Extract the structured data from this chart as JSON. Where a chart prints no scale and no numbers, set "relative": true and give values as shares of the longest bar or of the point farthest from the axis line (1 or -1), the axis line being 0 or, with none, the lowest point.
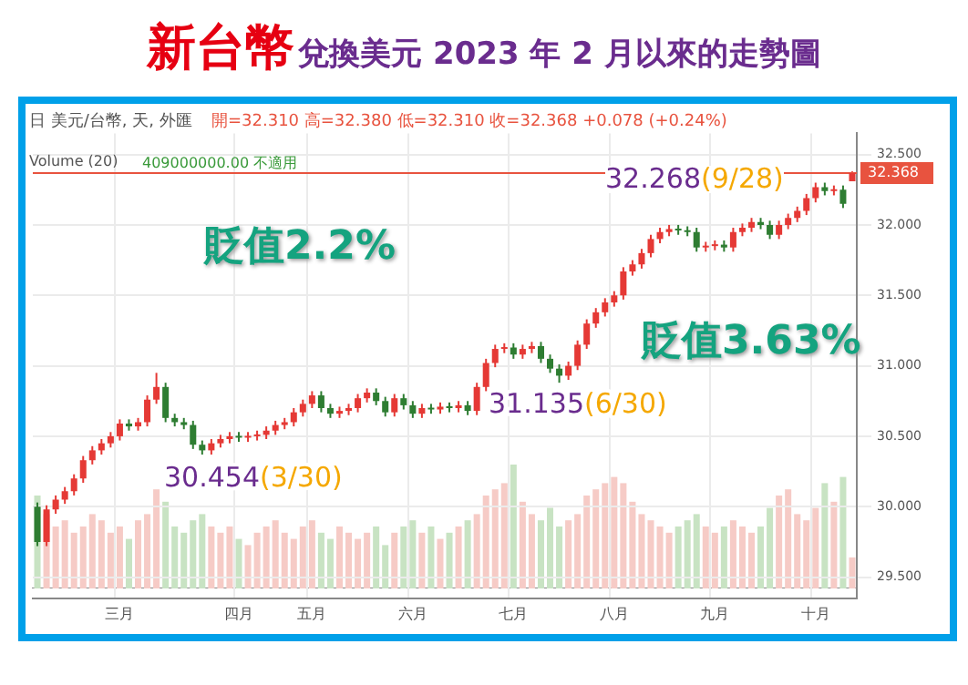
{
  "chart_data": [
    {
      "type": "candlestick",
      "title": "新台幣",
      "subtitle": "兌換美元 2023 年 2 月以來的走勢圖",
      "categories": [
        null,
        null,
        null,
        null,
        null,
        null,
        null,
        null,
        null,
        "三月",
        null,
        null,
        null,
        null,
        null,
        null,
        null,
        null,
        null,
        null,
        null,
        null,
        "四月",
        null,
        null,
        null,
        null,
        null,
        null,
        null,
        "五月",
        null,
        null,
        null,
        null,
        null,
        null,
        null,
        null,
        null,
        null,
        "六月",
        null,
        null,
        null,
        null,
        null,
        null,
        null,
        null,
        null,
        null,
        "七月",
        null,
        null,
        null,
        null,
        null,
        null,
        null,
        null,
        null,
        null,
        "八月",
        null,
        null,
        null,
        null,
        null,
        null,
        null,
        null,
        null,
        null,
        "九月",
        null,
        null,
        null,
        null,
        null,
        null,
        null,
        null,
        null,
        null,
        "十月",
        null,
        null,
        null,
        null
      ],
      "ohlc": [
        [
          30.0,
          30.03,
          29.72,
          29.75
        ],
        [
          29.75,
          30.01,
          29.72,
          29.98
        ],
        [
          29.98,
          30.08,
          29.95,
          30.05
        ],
        [
          30.05,
          30.14,
          30.02,
          30.11
        ],
        [
          30.11,
          30.23,
          30.08,
          30.2
        ],
        [
          30.2,
          30.36,
          30.17,
          30.33
        ],
        [
          30.33,
          30.43,
          30.3,
          30.4
        ],
        [
          30.4,
          30.48,
          30.37,
          30.45
        ],
        [
          30.45,
          30.53,
          30.42,
          30.5
        ],
        [
          30.5,
          30.62,
          30.47,
          30.59
        ],
        [
          30.59,
          30.62,
          30.54,
          30.57
        ],
        [
          30.57,
          30.63,
          30.54,
          30.6
        ],
        [
          30.6,
          30.79,
          30.57,
          30.76
        ],
        [
          30.76,
          30.95,
          30.73,
          30.85
        ],
        [
          30.85,
          30.88,
          30.6,
          30.63
        ],
        [
          30.63,
          30.66,
          30.57,
          30.6
        ],
        [
          30.6,
          30.63,
          30.55,
          30.58
        ],
        [
          30.58,
          30.61,
          30.41,
          30.44
        ],
        [
          30.44,
          30.47,
          30.37,
          30.4
        ],
        [
          30.4,
          30.48,
          30.37,
          30.45
        ],
        [
          30.45,
          30.51,
          30.42,
          30.48
        ],
        [
          30.48,
          30.53,
          30.45,
          30.5
        ],
        [
          30.5,
          30.53,
          30.46,
          30.49
        ],
        [
          30.49,
          30.53,
          30.46,
          30.5
        ],
        [
          30.5,
          30.54,
          30.47,
          30.51
        ],
        [
          30.51,
          30.57,
          30.48,
          30.54
        ],
        [
          30.54,
          30.61,
          30.51,
          30.58
        ],
        [
          30.58,
          30.63,
          30.55,
          30.6
        ],
        [
          30.6,
          30.7,
          30.57,
          30.67
        ],
        [
          30.67,
          30.76,
          30.64,
          30.73
        ],
        [
          30.73,
          30.82,
          30.7,
          30.79
        ],
        [
          30.79,
          30.82,
          30.67,
          30.7
        ],
        [
          30.7,
          30.73,
          30.63,
          30.66
        ],
        [
          30.66,
          30.71,
          30.63,
          30.68
        ],
        [
          30.68,
          30.73,
          30.65,
          30.7
        ],
        [
          30.7,
          30.8,
          30.67,
          30.77
        ],
        [
          30.77,
          30.84,
          30.74,
          30.81
        ],
        [
          30.81,
          30.84,
          30.72,
          30.75
        ],
        [
          30.75,
          30.78,
          30.64,
          30.67
        ],
        [
          30.67,
          30.8,
          30.64,
          30.77
        ],
        [
          30.77,
          30.8,
          30.69,
          30.72
        ],
        [
          30.72,
          30.75,
          30.63,
          30.66
        ],
        [
          30.66,
          30.73,
          30.63,
          30.7
        ],
        [
          30.7,
          30.73,
          30.66,
          30.69
        ],
        [
          30.69,
          30.74,
          30.66,
          30.71
        ],
        [
          30.71,
          30.74,
          30.67,
          30.7
        ],
        [
          30.7,
          30.75,
          30.67,
          30.72
        ],
        [
          30.72,
          30.75,
          30.65,
          30.68
        ],
        [
          30.68,
          30.88,
          30.65,
          30.85
        ],
        [
          30.85,
          31.05,
          30.82,
          31.02
        ],
        [
          31.02,
          31.15,
          30.99,
          31.12
        ],
        [
          31.12,
          31.16,
          31.09,
          31.13
        ],
        [
          31.13,
          31.16,
          31.05,
          31.08
        ],
        [
          31.08,
          31.15,
          31.05,
          31.12
        ],
        [
          31.12,
          31.17,
          31.09,
          31.14
        ],
        [
          31.14,
          31.17,
          31.02,
          31.05
        ],
        [
          31.05,
          31.08,
          30.95,
          30.98
        ],
        [
          30.98,
          31.01,
          30.88,
          30.93
        ],
        [
          30.93,
          31.03,
          30.9,
          31.0
        ],
        [
          31.0,
          31.18,
          30.97,
          31.15
        ],
        [
          31.15,
          31.33,
          31.12,
          31.3
        ],
        [
          31.3,
          31.41,
          31.27,
          31.38
        ],
        [
          31.38,
          31.48,
          31.35,
          31.45
        ],
        [
          31.45,
          31.53,
          31.42,
          31.5
        ],
        [
          31.5,
          31.7,
          31.47,
          31.67
        ],
        [
          31.67,
          31.75,
          31.64,
          31.72
        ],
        [
          31.72,
          31.83,
          31.69,
          31.8
        ],
        [
          31.8,
          31.93,
          31.77,
          31.9
        ],
        [
          31.9,
          31.98,
          31.87,
          31.95
        ],
        [
          31.95,
          32.0,
          31.92,
          31.97
        ],
        [
          31.97,
          32.0,
          31.93,
          31.96
        ],
        [
          31.96,
          31.99,
          31.92,
          31.95
        ],
        [
          31.95,
          31.98,
          31.81,
          31.84
        ],
        [
          31.84,
          31.88,
          31.81,
          31.85
        ],
        [
          31.85,
          31.89,
          31.82,
          31.86
        ],
        [
          31.86,
          31.89,
          31.81,
          31.84
        ],
        [
          31.84,
          31.98,
          31.81,
          31.95
        ],
        [
          31.95,
          32.01,
          31.92,
          31.98
        ],
        [
          31.98,
          32.05,
          31.95,
          32.02
        ],
        [
          32.02,
          32.05,
          31.97,
          32.0
        ],
        [
          32.0,
          32.03,
          31.9,
          31.93
        ],
        [
          31.93,
          32.03,
          31.9,
          32.0
        ],
        [
          32.0,
          32.08,
          31.97,
          32.05
        ],
        [
          32.05,
          32.13,
          32.02,
          32.1
        ],
        [
          32.1,
          32.22,
          32.07,
          32.19
        ],
        [
          32.19,
          32.3,
          32.16,
          32.268
        ],
        [
          32.268,
          32.3,
          32.21,
          32.24
        ],
        [
          32.24,
          32.28,
          32.21,
          32.25
        ],
        [
          32.25,
          32.28,
          32.12,
          32.15
        ],
        [
          32.31,
          32.38,
          32.31,
          32.368
        ]
      ],
      "colors": [
        "#2e7d32",
        "#e53935",
        "#e53935",
        "#e53935",
        "#e53935",
        "#e53935",
        "#e53935",
        "#e53935",
        "#e53935",
        "#e53935",
        "#2e7d32",
        "#e53935",
        "#e53935",
        "#e53935",
        "#2e7d32",
        "#2e7d32",
        "#2e7d32",
        "#2e7d32",
        "#2e7d32",
        "#e53935",
        "#e53935",
        "#e53935",
        "#2e7d32",
        "#e53935",
        "#e53935",
        "#e53935",
        "#e53935",
        "#e53935",
        "#e53935",
        "#e53935",
        "#e53935",
        "#2e7d32",
        "#2e7d32",
        "#e53935",
        "#e53935",
        "#e53935",
        "#e53935",
        "#2e7d32",
        "#2e7d32",
        "#e53935",
        "#2e7d32",
        "#2e7d32",
        "#e53935",
        "#2e7d32",
        "#e53935",
        "#2e7d32",
        "#e53935",
        "#2e7d32",
        "#e53935",
        "#e53935",
        "#e53935",
        "#e53935",
        "#2e7d32",
        "#e53935",
        "#e53935",
        "#2e7d32",
        "#2e7d32",
        "#2e7d32",
        "#e53935",
        "#e53935",
        "#e53935",
        "#e53935",
        "#e53935",
        "#e53935",
        "#e53935",
        "#e53935",
        "#e53935",
        "#e53935",
        "#e53935",
        "#e53935",
        "#2e7d32",
        "#2e7d32",
        "#2e7d32",
        "#e53935",
        "#e53935",
        "#2e7d32",
        "#e53935",
        "#e53935",
        "#e53935",
        "#2e7d32",
        "#2e7d32",
        "#e53935",
        "#e53935",
        "#e53935",
        "#e53935",
        "#e53935",
        "#2e7d32",
        "#e53935",
        "#2e7d32",
        "#e53935"
      ],
      "ylim": [
        29.35,
        32.65
      ],
      "yticks": [
        {
          "value": 29.5,
          "label": "29.500"
        },
        {
          "value": 30,
          "label": "30.000"
        },
        {
          "value": 30.5,
          "label": "30.500"
        },
        {
          "value": 31,
          "label": "31.000"
        },
        {
          "value": 31.5,
          "label": "31.500"
        },
        {
          "value": 32,
          "label": "32.000"
        },
        {
          "value": 32.5,
          "label": "32.500"
        }
      ],
      "grid": true,
      "ref_lines": [
        {
          "axis": "y",
          "value": 32.368,
          "label": "32.368",
          "color": "#e8533f"
        }
      ],
      "annotations": [
        "日 美元/台幣, 天, 外匯",
        "開=32.310 高=32.380 低=32.310 收=32.368 +0.078 (+0.24%)",
        "Volume (20)",
        "409000000.00 不適用",
        "貶值2.2%",
        "貶值3.63%",
        {
          "text": "30.454(3/30)",
          "y": 30.454
        },
        {
          "text": "31.135(6/30)",
          "y": 31.135
        },
        "32.268(9/28)"
      ]
    },
    {
      "type": "bar",
      "relative": true,
      "categories": [
        null,
        null,
        null,
        null,
        null,
        null,
        null,
        null,
        null,
        null,
        null,
        null,
        null,
        null,
        null,
        null,
        null,
        null,
        null,
        null,
        null,
        null,
        null,
        null,
        null,
        null,
        null,
        null,
        null,
        null,
        null,
        null,
        null,
        null,
        null,
        null,
        null,
        null,
        null,
        null,
        null,
        null,
        null,
        null,
        null,
        null,
        null,
        null,
        null,
        null,
        null,
        null,
        null,
        null,
        null,
        null,
        null,
        null,
        null,
        null,
        null,
        null,
        null,
        null,
        null,
        null,
        null,
        null,
        null,
        null,
        null,
        null,
        null,
        null,
        null,
        null,
        null,
        null,
        null,
        null,
        null,
        null,
        null,
        null,
        null,
        null,
        null,
        null,
        null,
        null
      ],
      "values": [
        0.75,
        0.6,
        0.5,
        0.55,
        0.45,
        0.5,
        0.6,
        0.55,
        0.45,
        0.5,
        0.4,
        0.55,
        0.6,
        0.8,
        0.7,
        0.5,
        0.45,
        0.55,
        0.6,
        0.5,
        0.45,
        0.5,
        0.4,
        0.35,
        0.45,
        0.5,
        0.55,
        0.45,
        0.4,
        0.5,
        0.55,
        0.45,
        0.4,
        0.5,
        0.45,
        0.4,
        0.45,
        0.5,
        0.35,
        0.45,
        0.5,
        0.55,
        0.45,
        0.5,
        0.4,
        0.45,
        0.5,
        0.55,
        0.6,
        0.75,
        0.8,
        0.85,
        1,
        0.7,
        0.6,
        0.55,
        0.65,
        0.5,
        0.55,
        0.6,
        0.75,
        0.8,
        0.85,
        0.9,
        0.85,
        0.7,
        0.6,
        0.55,
        0.5,
        0.45,
        0.5,
        0.55,
        0.6,
        0.5,
        0.45,
        0.5,
        0.55,
        0.5,
        0.45,
        0.5,
        0.65,
        0.75,
        0.8,
        0.6,
        0.55,
        0.65,
        0.85,
        0.7,
        0.9,
        0.25
      ],
      "colors": [
        "#c8e3c3",
        "#f6cbc6",
        "#f6cbc6",
        "#f6cbc6",
        "#f6cbc6",
        "#f6cbc6",
        "#f6cbc6",
        "#f6cbc6",
        "#f6cbc6",
        "#f6cbc6",
        "#c8e3c3",
        "#f6cbc6",
        "#f6cbc6",
        "#f6cbc6",
        "#c8e3c3",
        "#c8e3c3",
        "#c8e3c3",
        "#c8e3c3",
        "#c8e3c3",
        "#f6cbc6",
        "#f6cbc6",
        "#f6cbc6",
        "#c8e3c3",
        "#f6cbc6",
        "#f6cbc6",
        "#f6cbc6",
        "#f6cbc6",
        "#f6cbc6",
        "#f6cbc6",
        "#f6cbc6",
        "#f6cbc6",
        "#c8e3c3",
        "#c8e3c3",
        "#f6cbc6",
        "#f6cbc6",
        "#f6cbc6",
        "#f6cbc6",
        "#c8e3c3",
        "#c8e3c3",
        "#f6cbc6",
        "#c8e3c3",
        "#c8e3c3",
        "#f6cbc6",
        "#c8e3c3",
        "#f6cbc6",
        "#c8e3c3",
        "#f6cbc6",
        "#c8e3c3",
        "#f6cbc6",
        "#f6cbc6",
        "#f6cbc6",
        "#f6cbc6",
        "#c8e3c3",
        "#f6cbc6",
        "#f6cbc6",
        "#c8e3c3",
        "#c8e3c3",
        "#c8e3c3",
        "#f6cbc6",
        "#f6cbc6",
        "#f6cbc6",
        "#f6cbc6",
        "#f6cbc6",
        "#f6cbc6",
        "#f6cbc6",
        "#f6cbc6",
        "#f6cbc6",
        "#f6cbc6",
        "#f6cbc6",
        "#f6cbc6",
        "#c8e3c3",
        "#c8e3c3",
        "#c8e3c3",
        "#f6cbc6",
        "#f6cbc6",
        "#c8e3c3",
        "#f6cbc6",
        "#f6cbc6",
        "#f6cbc6",
        "#c8e3c3",
        "#c8e3c3",
        "#f6cbc6",
        "#f6cbc6",
        "#f6cbc6",
        "#f6cbc6",
        "#f6cbc6",
        "#c8e3c3",
        "#f6cbc6",
        "#c8e3c3",
        "#f6cbc6"
      ]
    }
  ]
}
